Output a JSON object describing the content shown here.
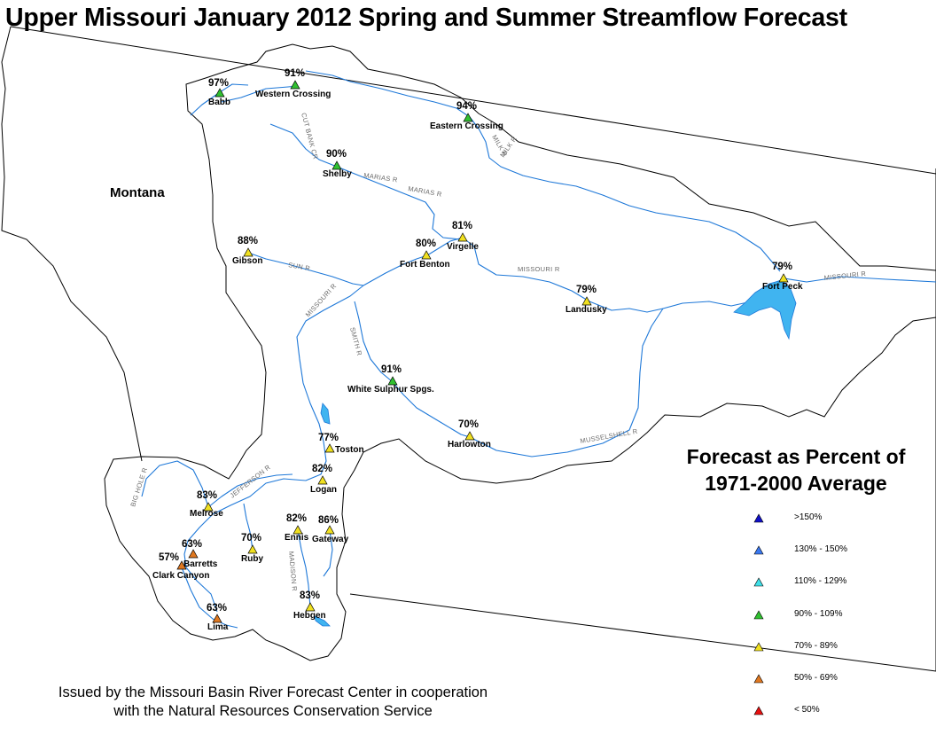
{
  "title": "Upper Missouri January 2012 Spring and Summer Streamflow Forecast",
  "state_label": "Montana",
  "legend": {
    "title_line1": "Forecast as Percent of",
    "title_line2": "1971-2000 Average",
    "items": [
      {
        "label": ">150%",
        "color": "#1010c8"
      },
      {
        "label": "130% - 150%",
        "color": "#3a78f0"
      },
      {
        "label": "110% - 129%",
        "color": "#40e0e8"
      },
      {
        "label": "90% - 109%",
        "color": "#30c030"
      },
      {
        "label": "70% - 89%",
        "color": "#f0e020"
      },
      {
        "label": "50% - 69%",
        "color": "#e07820"
      },
      {
        "label": "< 50%",
        "color": "#e81010"
      }
    ]
  },
  "footer": {
    "line1": "Issued by the Missouri Basin River Forecast Center in cooperation",
    "line2": "with the Natural Resources Conservation Service"
  },
  "river_labels": [
    "MISSOURI R",
    "MISSOURI R",
    "MISSOURI R",
    "MARIAS R",
    "MARIAS R",
    "MILK R",
    "MILK R",
    "SUN R",
    "SMITH R",
    "MUSSELSHELL R",
    "JEFFERSON R",
    "BIG HOLE R",
    "MADISON R",
    "CUT BANK CR"
  ],
  "stations": [
    {
      "name": "Babb",
      "pct": "97%",
      "color": "#30c030"
    },
    {
      "name": "Western Crossing",
      "pct": "91%",
      "color": "#30c030"
    },
    {
      "name": "Eastern Crossing",
      "pct": "94%",
      "color": "#30c030"
    },
    {
      "name": "Shelby",
      "pct": "90%",
      "color": "#30c030"
    },
    {
      "name": "Gibson",
      "pct": "88%",
      "color": "#f0e020"
    },
    {
      "name": "Virgelle",
      "pct": "81%",
      "color": "#f0e020"
    },
    {
      "name": "Fort Benton",
      "pct": "80%",
      "color": "#f0e020"
    },
    {
      "name": "Fort Peck",
      "pct": "79%",
      "color": "#f0e020"
    },
    {
      "name": "Landusky",
      "pct": "79%",
      "color": "#f0e020"
    },
    {
      "name": "White Sulphur Spgs.",
      "pct": "91%",
      "color": "#30c030"
    },
    {
      "name": "Harlowton",
      "pct": "70%",
      "color": "#f0e020"
    },
    {
      "name": "Toston",
      "pct": "77%",
      "color": "#f0e020"
    },
    {
      "name": "Logan",
      "pct": "82%",
      "color": "#f0e020"
    },
    {
      "name": "Melrose",
      "pct": "83%",
      "color": "#f0e020"
    },
    {
      "name": "Ennis",
      "pct": "82%",
      "color": "#f0e020"
    },
    {
      "name": "Gateway",
      "pct": "86%",
      "color": "#f0e020"
    },
    {
      "name": "Ruby",
      "pct": "70%",
      "color": "#f0e020"
    },
    {
      "name": "Barretts",
      "pct": "63%",
      "color": "#e07820"
    },
    {
      "name": "Clark Canyon",
      "pct": "57%",
      "color": "#e07820"
    },
    {
      "name": "Hebgen",
      "pct": "83%",
      "color": "#f0e020"
    },
    {
      "name": "Lima",
      "pct": "63%",
      "color": "#e07820"
    }
  ]
}
